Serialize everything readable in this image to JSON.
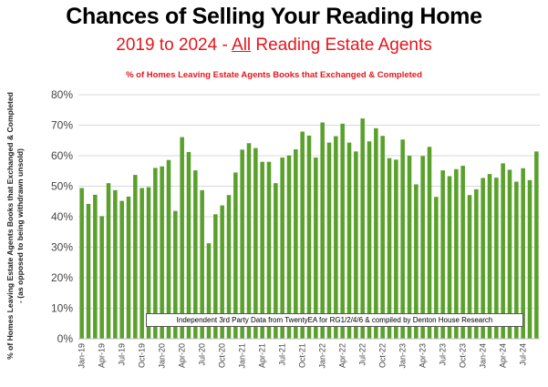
{
  "header": {
    "title": "Chances of Selling Your Reading Home",
    "subtitle_before": "2019 to 2024 - ",
    "subtitle_underlined": "All",
    "subtitle_after": " Reading Estate Agents",
    "note": "% of Homes Leaving Estate Agents Books that Exchanged & Completed"
  },
  "source": "Independent 3rd Party Data from TwentyEA for RG1/2/4/6 & compiled by Denton House Research",
  "colors": {
    "bar": "#5aa02c",
    "title": "#000000",
    "subtitle": "#e8141b",
    "grid": "#d9d9d9"
  },
  "chart_data": {
    "type": "bar",
    "ylabel_line1": "% of Homes Leaving Estate Agents Books that Exchanged & Completed",
    "ylabel_line2": "- (as opposed to being withdrawn unsold)",
    "ylim": [
      0,
      80
    ],
    "yticks": [
      "0%",
      "10%",
      "20%",
      "30%",
      "40%",
      "50%",
      "60%",
      "70%",
      "80%"
    ],
    "grid": true,
    "x_tick_labels": [
      "Jan-19",
      "Apr-19",
      "Jul-19",
      "Oct-19",
      "Jan-20",
      "Apr-20",
      "Jul-20",
      "Oct-20",
      "Jan-21",
      "Apr-21",
      "Jul-21",
      "Oct-21",
      "Jan-22",
      "Apr-22",
      "Jul-22",
      "Oct-22",
      "Jan-23",
      "Apr-23",
      "Jul-23",
      "Oct-23",
      "Jan-24",
      "Apr-24",
      "Jul-24"
    ],
    "x_tick_every": 3,
    "values": [
      49.4,
      44.2,
      47.2,
      40.2,
      51.0,
      48.7,
      45.2,
      46.6,
      53.7,
      49.4,
      49.7,
      56.0,
      56.5,
      58.6,
      41.9,
      66.1,
      61.2,
      55.2,
      48.7,
      31.3,
      40.8,
      43.7,
      47.1,
      54.5,
      62.0,
      64.1,
      62.5,
      58.0,
      58.0,
      51.0,
      59.4,
      60.1,
      62.1,
      67.9,
      66.6,
      59.4,
      70.9,
      64.3,
      66.4,
      70.5,
      64.3,
      61.4,
      72.2,
      64.7,
      69.0,
      66.5,
      59.2,
      58.7,
      65.3,
      60.0,
      50.6,
      59.9,
      62.9,
      46.5,
      55.2,
      53.3,
      55.6,
      56.7,
      47.1,
      49.0,
      52.7,
      54.0,
      52.8,
      57.5,
      55.4,
      51.5,
      55.9,
      52.0,
      61.4
    ]
  }
}
